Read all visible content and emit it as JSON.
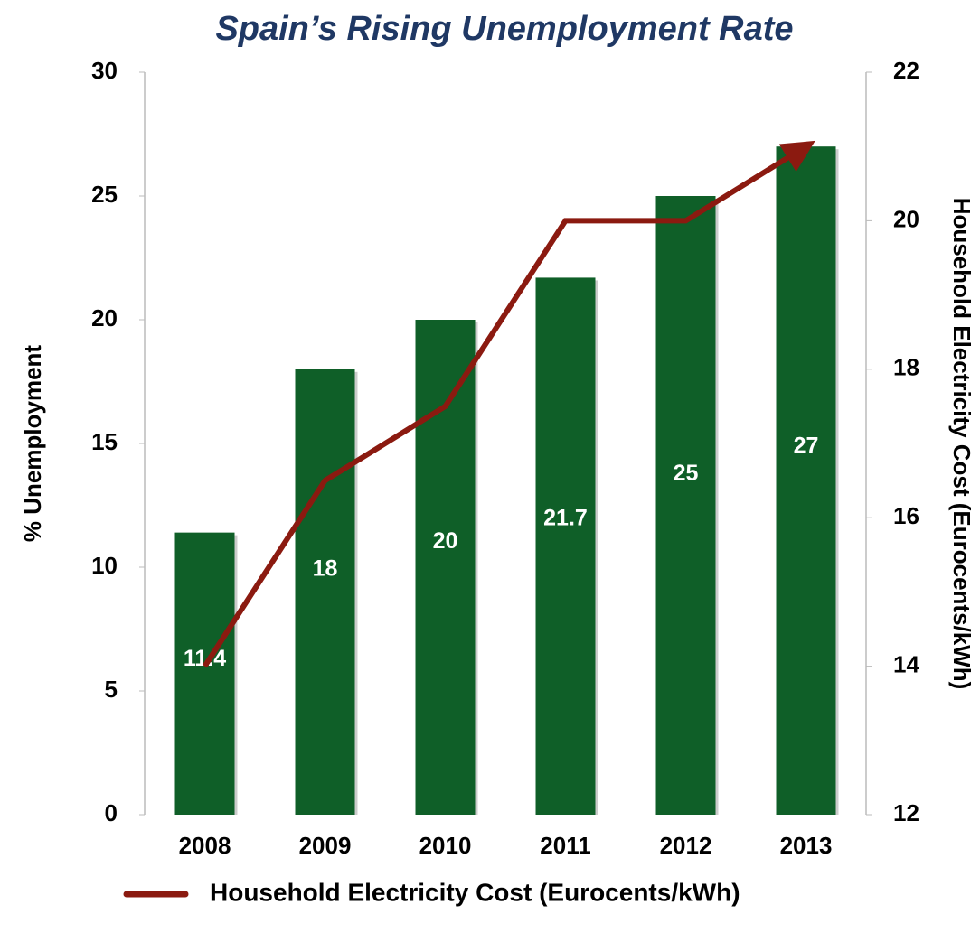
{
  "chart_data": {
    "type": "bar",
    "title": "Spain’s Rising Unemployment Rate",
    "categories": [
      "2008",
      "2009",
      "2010",
      "2011",
      "2012",
      "2013"
    ],
    "series": [
      {
        "type": "bar",
        "color": "#0f5f28",
        "values": [
          11.4,
          18,
          20,
          21.7,
          25,
          27
        ],
        "axis": "y"
      },
      {
        "type": "line",
        "name": "Household Electricity Cost (Eurocents/kWh)",
        "color": "#8b1a10",
        "values": [
          14,
          16.5,
          17.5,
          20,
          20,
          21
        ],
        "axis": "y2"
      }
    ],
    "ylabel": "% Unemployment",
    "y2label": "Household Electricity Cost (Eurocents/kWh)",
    "ylim": [
      0,
      30
    ],
    "yticks": [
      0,
      5,
      10,
      15,
      20,
      25,
      30
    ],
    "y2lim": [
      12,
      22
    ],
    "y2ticks": [
      12,
      14,
      16,
      18,
      20,
      22
    ],
    "grid": false,
    "legend": "bottom"
  }
}
